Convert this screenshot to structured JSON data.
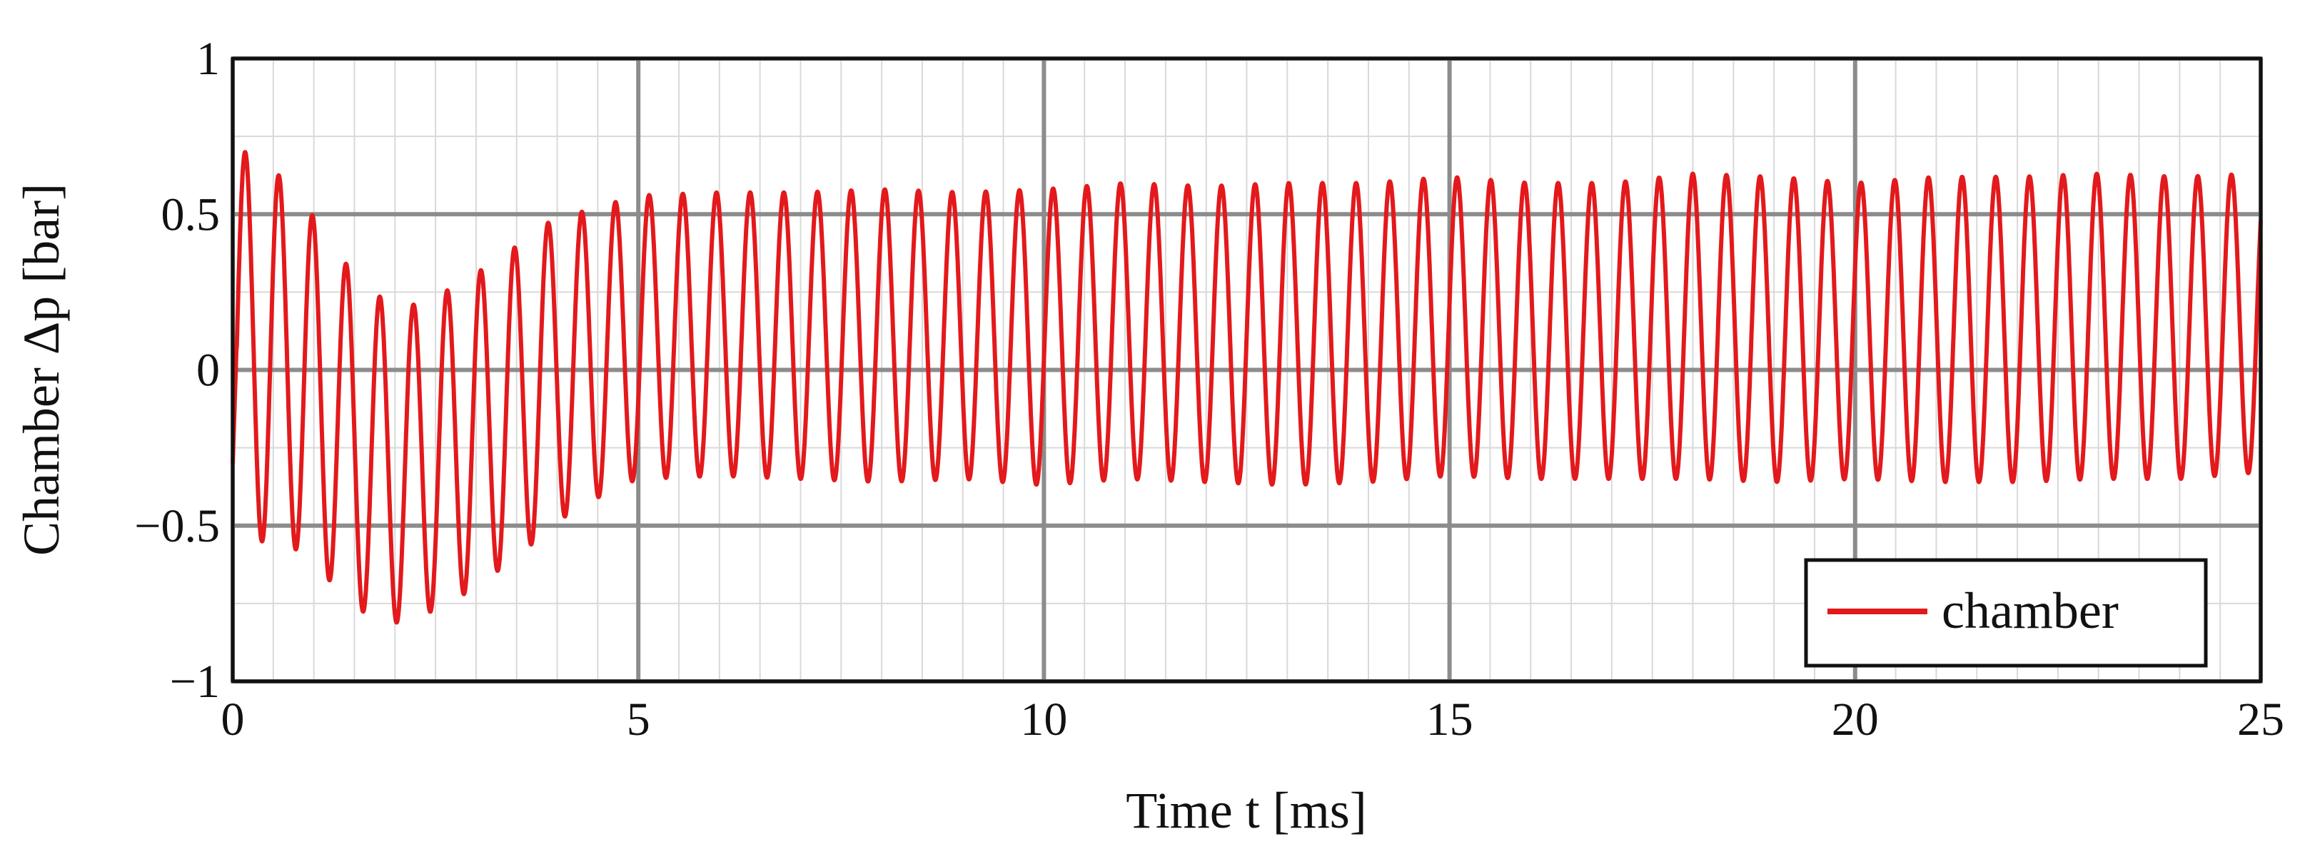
{
  "chart_data": {
    "type": "line",
    "xlabel": "Time t [ms]",
    "ylabel": "Chamber Δp [bar]",
    "xlim": [
      0,
      25
    ],
    "ylim": [
      -1,
      1
    ],
    "xticks": [
      0,
      5,
      10,
      15,
      20,
      25
    ],
    "xtick_labels": [
      "0",
      "5",
      "10",
      "15",
      "20",
      "25"
    ],
    "yticks": [
      -1,
      -0.5,
      0,
      0.5,
      1
    ],
    "ytick_labels": [
      "−1",
      "−0.5",
      "0",
      "0.5",
      "1"
    ],
    "grid": true,
    "legend_position": "bottom-right",
    "series": [
      {
        "name": "chamber",
        "color": "#e3191c",
        "period_ms": 0.415,
        "peaks": [
          {
            "t": 0.15,
            "v": 0.7
          },
          {
            "t": 0.55,
            "v": 0.63
          },
          {
            "t": 0.9,
            "v": 0.53
          },
          {
            "t": 1.3,
            "v": 0.37
          },
          {
            "t": 1.7,
            "v": 0.25
          },
          {
            "t": 2.1,
            "v": 0.2
          },
          {
            "t": 2.5,
            "v": 0.23
          },
          {
            "t": 2.9,
            "v": 0.3
          },
          {
            "t": 3.3,
            "v": 0.35
          },
          {
            "t": 3.75,
            "v": 0.46
          },
          {
            "t": 4.2,
            "v": 0.5
          },
          {
            "t": 4.6,
            "v": 0.53
          },
          {
            "t": 5.0,
            "v": 0.56
          },
          {
            "t": 6.0,
            "v": 0.57
          },
          {
            "t": 7.0,
            "v": 0.57
          },
          {
            "t": 8.0,
            "v": 0.58
          },
          {
            "t": 9.0,
            "v": 0.57
          },
          {
            "t": 10.0,
            "v": 0.58
          },
          {
            "t": 11.0,
            "v": 0.6
          },
          {
            "t": 12.0,
            "v": 0.59
          },
          {
            "t": 13.0,
            "v": 0.6
          },
          {
            "t": 14.0,
            "v": 0.6
          },
          {
            "t": 15.0,
            "v": 0.62
          },
          {
            "t": 16.0,
            "v": 0.6
          },
          {
            "t": 17.0,
            "v": 0.6
          },
          {
            "t": 18.0,
            "v": 0.63
          },
          {
            "t": 19.0,
            "v": 0.62
          },
          {
            "t": 20.0,
            "v": 0.6
          },
          {
            "t": 21.0,
            "v": 0.62
          },
          {
            "t": 22.0,
            "v": 0.62
          },
          {
            "t": 23.0,
            "v": 0.63
          },
          {
            "t": 24.0,
            "v": 0.62
          },
          {
            "t": 24.9,
            "v": 0.63
          }
        ],
        "troughs": [
          {
            "t": 0.35,
            "v": -0.55
          },
          {
            "t": 0.75,
            "v": -0.57
          },
          {
            "t": 1.1,
            "v": -0.65
          },
          {
            "t": 1.5,
            "v": -0.76
          },
          {
            "t": 1.9,
            "v": -0.82
          },
          {
            "t": 2.3,
            "v": -0.79
          },
          {
            "t": 2.7,
            "v": -0.75
          },
          {
            "t": 3.1,
            "v": -0.67
          },
          {
            "t": 3.5,
            "v": -0.61
          },
          {
            "t": 3.9,
            "v": -0.5
          },
          {
            "t": 4.3,
            "v": -0.44
          },
          {
            "t": 4.7,
            "v": -0.38
          },
          {
            "t": 5.0,
            "v": -0.35
          },
          {
            "t": 6.0,
            "v": -0.34
          },
          {
            "t": 7.0,
            "v": -0.35
          },
          {
            "t": 8.0,
            "v": -0.36
          },
          {
            "t": 9.0,
            "v": -0.35
          },
          {
            "t": 10.0,
            "v": -0.37
          },
          {
            "t": 11.0,
            "v": -0.35
          },
          {
            "t": 12.0,
            "v": -0.36
          },
          {
            "t": 13.0,
            "v": -0.37
          },
          {
            "t": 14.0,
            "v": -0.36
          },
          {
            "t": 15.0,
            "v": -0.34
          },
          {
            "t": 16.0,
            "v": -0.35
          },
          {
            "t": 17.0,
            "v": -0.35
          },
          {
            "t": 18.0,
            "v": -0.35
          },
          {
            "t": 19.0,
            "v": -0.36
          },
          {
            "t": 20.0,
            "v": -0.35
          },
          {
            "t": 21.0,
            "v": -0.36
          },
          {
            "t": 22.0,
            "v": -0.36
          },
          {
            "t": 23.0,
            "v": -0.35
          },
          {
            "t": 24.0,
            "v": -0.35
          },
          {
            "t": 24.9,
            "v": -0.33
          }
        ]
      }
    ]
  }
}
